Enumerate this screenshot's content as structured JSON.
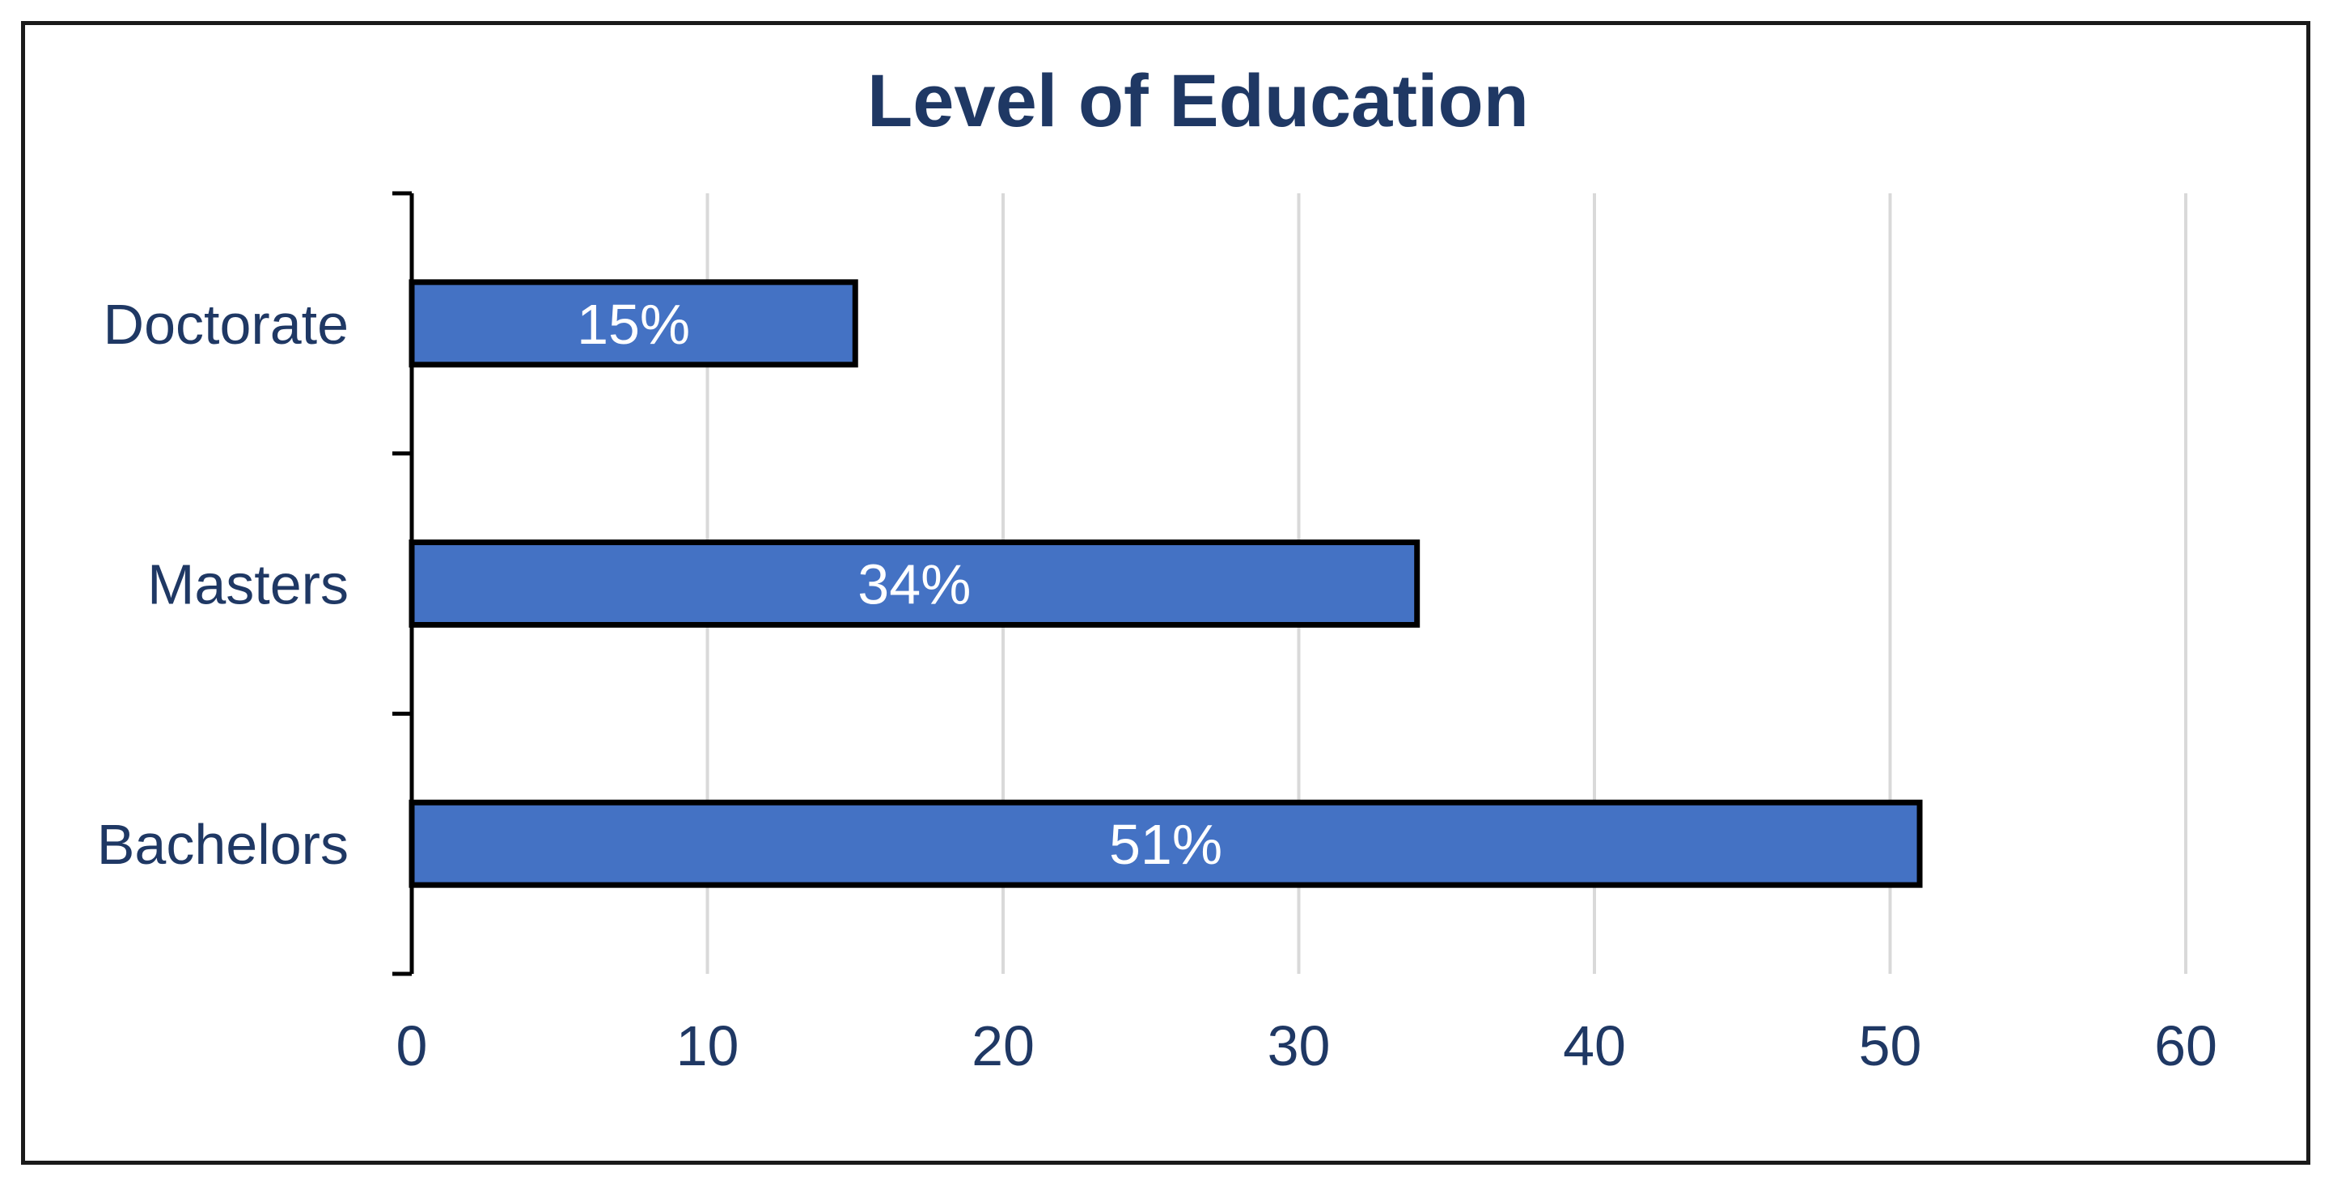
{
  "chart_data": {
    "type": "bar",
    "orientation": "horizontal",
    "title": "Level of Education",
    "xlabel": "",
    "ylabel": "",
    "categories": [
      "Doctorate",
      "Masters",
      "Bachelors"
    ],
    "values": [
      15,
      34,
      51
    ],
    "data_labels": [
      "15%",
      "34%",
      "51%"
    ],
    "xlim": [
      0,
      60
    ],
    "xticks": [
      0,
      10,
      20,
      30,
      40,
      50,
      60
    ],
    "grid": "vertical",
    "legend": "none"
  },
  "colors": {
    "bar_fill": "#4472C4",
    "bar_outline": "#000000",
    "text": "#1F3864",
    "bar_label_text": "#ffffff",
    "gridline": "#d9d9d9",
    "axis_line": "#000000"
  }
}
